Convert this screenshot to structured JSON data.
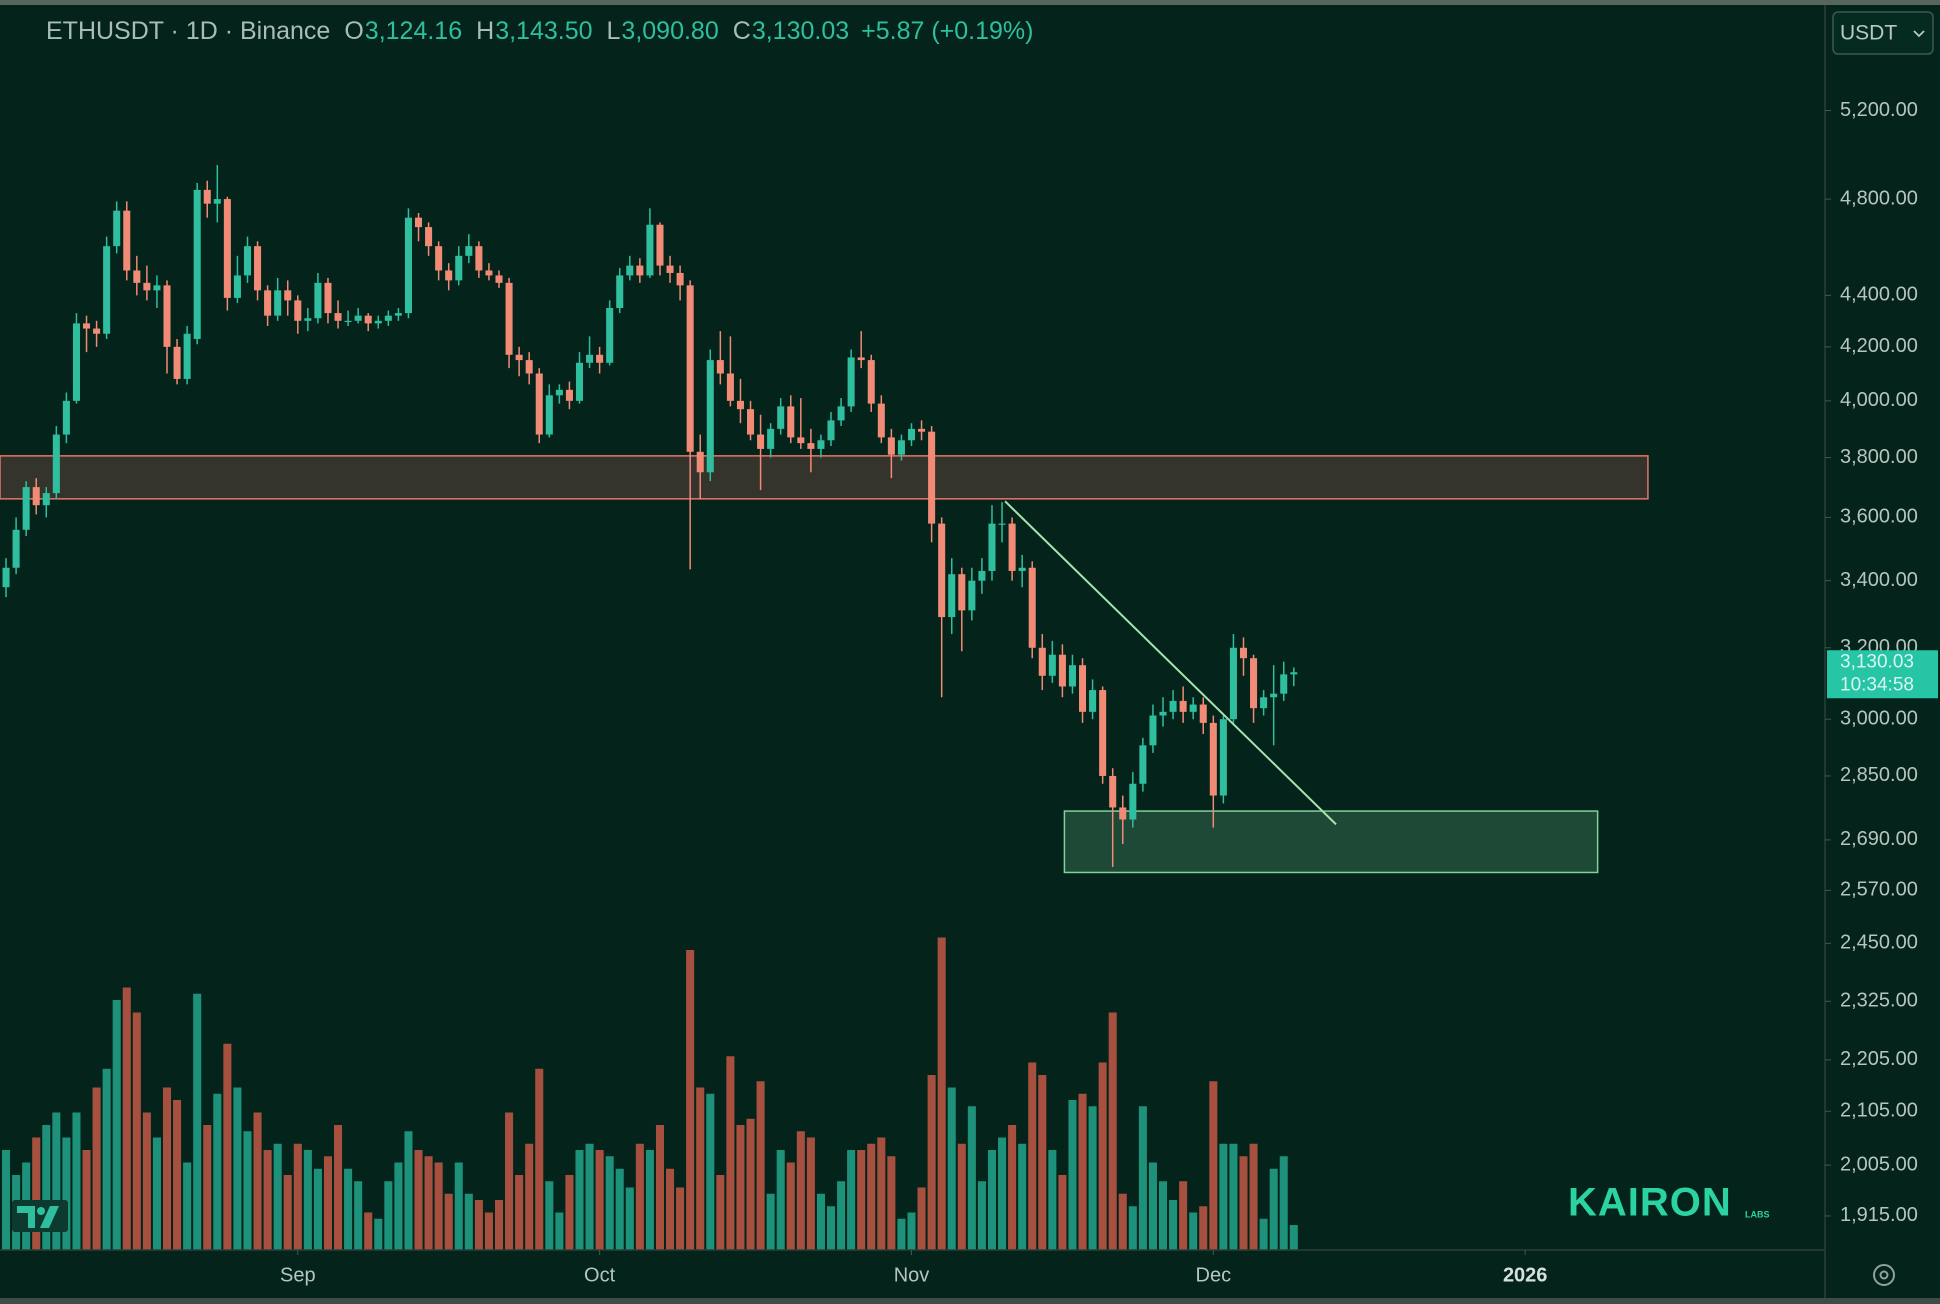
{
  "chart_data": {
    "type": "candlestick",
    "title": "ETHUSDT · 1D · Binance",
    "header_ohlc": [
      {
        "key": "O",
        "value": "3,124.16"
      },
      {
        "key": "H",
        "value": "3,143.50"
      },
      {
        "key": "L",
        "value": "3,090.80"
      },
      {
        "key": "C",
        "value": "3,130.03"
      }
    ],
    "change": "+5.87 (+0.19%)",
    "currency": "USDT",
    "price_label": "3,130.03",
    "countdown": "10:34:58",
    "watermark": "KAIRON",
    "watermark_sub": "LABS",
    "log_scale": true,
    "grid": false,
    "colors": {
      "up": "#2fbf9f",
      "down": "#f28b76",
      "volume_up": "#1e917a",
      "volume_down": "#a8503f",
      "background": "#03231b",
      "price_box": "#25c5a6"
    },
    "xlim": [
      -0.6,
      180.8
    ],
    "xticks": [
      {
        "value": 29,
        "label": "Sep"
      },
      {
        "value": 59,
        "label": "Oct"
      },
      {
        "value": 90,
        "label": "Nov"
      },
      {
        "value": 120,
        "label": "Dec"
      },
      {
        "value": 151,
        "label": "2026"
      }
    ],
    "ylim": [
      1857,
      5746
    ],
    "yticks": [
      {
        "value": 5200,
        "label": "5,200.00"
      },
      {
        "value": 4800,
        "label": "4,800.00"
      },
      {
        "value": 4400,
        "label": "4,400.00"
      },
      {
        "value": 4200,
        "label": "4,200.00"
      },
      {
        "value": 4000,
        "label": "4,000.00"
      },
      {
        "value": 3800,
        "label": "3,800.00"
      },
      {
        "value": 3600,
        "label": "3,600.00"
      },
      {
        "value": 3400,
        "label": "3,400.00"
      },
      {
        "value": 3200,
        "label": "3,200.00"
      },
      {
        "value": 3000,
        "label": "3,000.00"
      },
      {
        "value": 2850,
        "label": "2,850.00"
      },
      {
        "value": 2690,
        "label": "2,690.00"
      },
      {
        "value": 2570,
        "label": "2,570.00"
      },
      {
        "value": 2450,
        "label": "2,450.00"
      },
      {
        "value": 2325,
        "label": "2,325.00"
      },
      {
        "value": 2205,
        "label": "2,205.00"
      },
      {
        "value": 2105,
        "label": "2,105.00"
      },
      {
        "value": 2005,
        "label": "2,005.00"
      },
      {
        "value": 1915,
        "label": "1,915.00"
      }
    ],
    "zones": [
      {
        "color": "#e8736a",
        "from": 3661,
        "to": 3806,
        "x_from": -0.6,
        "x_to": 163.2
      },
      {
        "color": "#7fd39a",
        "from": 2612,
        "to": 2761,
        "x_from": 105.2,
        "x_to": 158.2
      }
    ],
    "trendline": {
      "color": "#a6e3ae",
      "x": [
        99.3,
        132.2
      ],
      "y": [
        3653,
        2728
      ]
    },
    "volume_lim": [
      0,
      320
    ],
    "ohlc": [
      [
        3380,
        3470,
        3350,
        3440
      ],
      [
        3440,
        3600,
        3420,
        3560
      ],
      [
        3560,
        3720,
        3540,
        3700
      ],
      [
        3700,
        3730,
        3610,
        3640
      ],
      [
        3640,
        3700,
        3600,
        3680
      ],
      [
        3680,
        3910,
        3660,
        3880
      ],
      [
        3880,
        4030,
        3850,
        4000
      ],
      [
        4000,
        4330,
        3990,
        4290
      ],
      [
        4290,
        4320,
        4180,
        4270
      ],
      [
        4270,
        4300,
        4200,
        4250
      ],
      [
        4250,
        4640,
        4230,
        4600
      ],
      [
        4600,
        4790,
        4570,
        4750
      ],
      [
        4750,
        4790,
        4460,
        4500
      ],
      [
        4500,
        4560,
        4400,
        4450
      ],
      [
        4450,
        4520,
        4380,
        4420
      ],
      [
        4420,
        4480,
        4350,
        4440
      ],
      [
        4440,
        4460,
        4100,
        4200
      ],
      [
        4200,
        4230,
        4060,
        4080
      ],
      [
        4080,
        4280,
        4060,
        4250
      ],
      [
        4230,
        4870,
        4210,
        4840
      ],
      [
        4840,
        4880,
        4720,
        4780
      ],
      [
        4780,
        4950,
        4700,
        4800
      ],
      [
        4800,
        4810,
        4340,
        4390
      ],
      [
        4390,
        4560,
        4370,
        4480
      ],
      [
        4480,
        4640,
        4450,
        4600
      ],
      [
        4600,
        4620,
        4380,
        4420
      ],
      [
        4420,
        4440,
        4280,
        4320
      ],
      [
        4320,
        4470,
        4300,
        4420
      ],
      [
        4420,
        4460,
        4320,
        4380
      ],
      [
        4380,
        4400,
        4250,
        4300
      ],
      [
        4300,
        4350,
        4260,
        4310
      ],
      [
        4310,
        4490,
        4290,
        4450
      ],
      [
        4450,
        4470,
        4290,
        4330
      ],
      [
        4330,
        4380,
        4270,
        4300
      ],
      [
        4300,
        4340,
        4280,
        4300
      ],
      [
        4300,
        4350,
        4290,
        4320
      ],
      [
        4320,
        4330,
        4260,
        4290
      ],
      [
        4290,
        4320,
        4270,
        4300
      ],
      [
        4300,
        4340,
        4280,
        4320
      ],
      [
        4320,
        4350,
        4300,
        4330
      ],
      [
        4330,
        4760,
        4310,
        4720
      ],
      [
        4720,
        4740,
        4620,
        4680
      ],
      [
        4680,
        4700,
        4560,
        4600
      ],
      [
        4600,
        4620,
        4460,
        4500
      ],
      [
        4500,
        4530,
        4420,
        4460
      ],
      [
        4460,
        4600,
        4440,
        4560
      ],
      [
        4560,
        4650,
        4530,
        4600
      ],
      [
        4600,
        4620,
        4470,
        4500
      ],
      [
        4500,
        4530,
        4460,
        4480
      ],
      [
        4480,
        4500,
        4430,
        4450
      ],
      [
        4450,
        4470,
        4120,
        4170
      ],
      [
        4170,
        4200,
        4090,
        4150
      ],
      [
        4150,
        4180,
        4060,
        4100
      ],
      [
        4100,
        4120,
        3850,
        3880
      ],
      [
        3880,
        4060,
        3870,
        4020
      ],
      [
        4020,
        4060,
        3990,
        4040
      ],
      [
        4040,
        4070,
        3970,
        4000
      ],
      [
        4000,
        4180,
        3990,
        4140
      ],
      [
        4140,
        4240,
        4120,
        4170
      ],
      [
        4170,
        4200,
        4100,
        4140
      ],
      [
        4140,
        4380,
        4130,
        4350
      ],
      [
        4350,
        4510,
        4330,
        4480
      ],
      [
        4480,
        4560,
        4460,
        4520
      ],
      [
        4520,
        4550,
        4450,
        4480
      ],
      [
        4480,
        4760,
        4470,
        4690
      ],
      [
        4690,
        4700,
        4480,
        4520
      ],
      [
        4520,
        4560,
        4450,
        4490
      ],
      [
        4490,
        4520,
        4380,
        4440
      ],
      [
        4440,
        4460,
        3435,
        3820
      ],
      [
        3820,
        3880,
        3660,
        3750
      ],
      [
        3750,
        4190,
        3720,
        4150
      ],
      [
        4150,
        4260,
        4060,
        4100
      ],
      [
        4100,
        4240,
        3980,
        4000
      ],
      [
        4000,
        4080,
        3920,
        3970
      ],
      [
        3970,
        4000,
        3860,
        3880
      ],
      [
        3880,
        3950,
        3690,
        3830
      ],
      [
        3830,
        3920,
        3800,
        3900
      ],
      [
        3900,
        4010,
        3880,
        3980
      ],
      [
        3980,
        4020,
        3850,
        3870
      ],
      [
        3870,
        4010,
        3830,
        3850
      ],
      [
        3850,
        3900,
        3750,
        3830
      ],
      [
        3830,
        3880,
        3800,
        3860
      ],
      [
        3860,
        3960,
        3840,
        3930
      ],
      [
        3930,
        4010,
        3910,
        3980
      ],
      [
        3980,
        4190,
        3960,
        4160
      ],
      [
        4160,
        4260,
        4120,
        4150
      ],
      [
        4150,
        4170,
        3960,
        3990
      ],
      [
        3990,
        4020,
        3850,
        3870
      ],
      [
        3870,
        3900,
        3730,
        3810
      ],
      [
        3810,
        3880,
        3790,
        3860
      ],
      [
        3860,
        3920,
        3840,
        3900
      ],
      [
        3900,
        3930,
        3860,
        3890
      ],
      [
        3890,
        3910,
        3520,
        3580
      ],
      [
        3580,
        3600,
        3060,
        3290
      ],
      [
        3290,
        3470,
        3240,
        3420
      ],
      [
        3420,
        3440,
        3190,
        3310
      ],
      [
        3310,
        3440,
        3280,
        3400
      ],
      [
        3400,
        3470,
        3360,
        3430
      ],
      [
        3430,
        3640,
        3400,
        3580
      ],
      [
        3580,
        3650,
        3520,
        3580
      ],
      [
        3580,
        3600,
        3400,
        3430
      ],
      [
        3430,
        3480,
        3380,
        3440
      ],
      [
        3440,
        3460,
        3170,
        3200
      ],
      [
        3200,
        3240,
        3080,
        3120
      ],
      [
        3120,
        3220,
        3100,
        3180
      ],
      [
        3180,
        3210,
        3060,
        3090
      ],
      [
        3090,
        3180,
        3070,
        3150
      ],
      [
        3150,
        3170,
        2990,
        3020
      ],
      [
        3020,
        3110,
        3000,
        3080
      ],
      [
        3080,
        3090,
        2830,
        2850
      ],
      [
        2850,
        2870,
        2625,
        2770
      ],
      [
        2770,
        2800,
        2680,
        2740
      ],
      [
        2740,
        2860,
        2720,
        2830
      ],
      [
        2830,
        2950,
        2810,
        2930
      ],
      [
        2930,
        3040,
        2910,
        3010
      ],
      [
        3010,
        3060,
        2980,
        3020
      ],
      [
        3020,
        3080,
        3000,
        3050
      ],
      [
        3050,
        3090,
        2990,
        3020
      ],
      [
        3020,
        3060,
        3000,
        3040
      ],
      [
        3040,
        3060,
        2960,
        2990
      ],
      [
        2990,
        3010,
        2720,
        2800
      ],
      [
        2800,
        3010,
        2780,
        3000
      ],
      [
        3000,
        3240,
        2990,
        3200
      ],
      [
        3200,
        3230,
        3120,
        3170
      ],
      [
        3170,
        3180,
        2990,
        3030
      ],
      [
        3030,
        3080,
        3010,
        3060
      ],
      [
        3060,
        3150,
        2930,
        3070
      ],
      [
        3070,
        3160,
        3050,
        3124
      ],
      [
        3124.16,
        3143.5,
        3090.8,
        3130.03
      ]
    ],
    "volume": [
      80,
      60,
      70,
      90,
      100,
      110,
      90,
      110,
      80,
      130,
      145,
      200,
      210,
      190,
      110,
      90,
      130,
      120,
      70,
      205,
      100,
      125,
      165,
      130,
      95,
      110,
      80,
      85,
      60,
      85,
      80,
      65,
      75,
      100,
      65,
      55,
      30,
      25,
      55,
      70,
      95,
      80,
      75,
      70,
      45,
      70,
      45,
      40,
      30,
      40,
      110,
      60,
      85,
      145,
      55,
      30,
      60,
      80,
      85,
      80,
      75,
      65,
      50,
      85,
      80,
      100,
      65,
      50,
      240,
      130,
      125,
      60,
      155,
      100,
      105,
      135,
      45,
      80,
      70,
      95,
      90,
      45,
      35,
      55,
      80,
      80,
      85,
      90,
      75,
      25,
      30,
      50,
      140,
      250,
      130,
      85,
      115,
      55,
      80,
      90,
      100,
      85,
      150,
      140,
      80,
      60,
      120,
      125,
      115,
      150,
      190,
      45,
      35,
      115,
      70,
      55,
      40,
      55,
      30,
      35,
      135,
      85,
      85,
      75,
      85,
      25,
      65,
      75,
      20
    ]
  }
}
